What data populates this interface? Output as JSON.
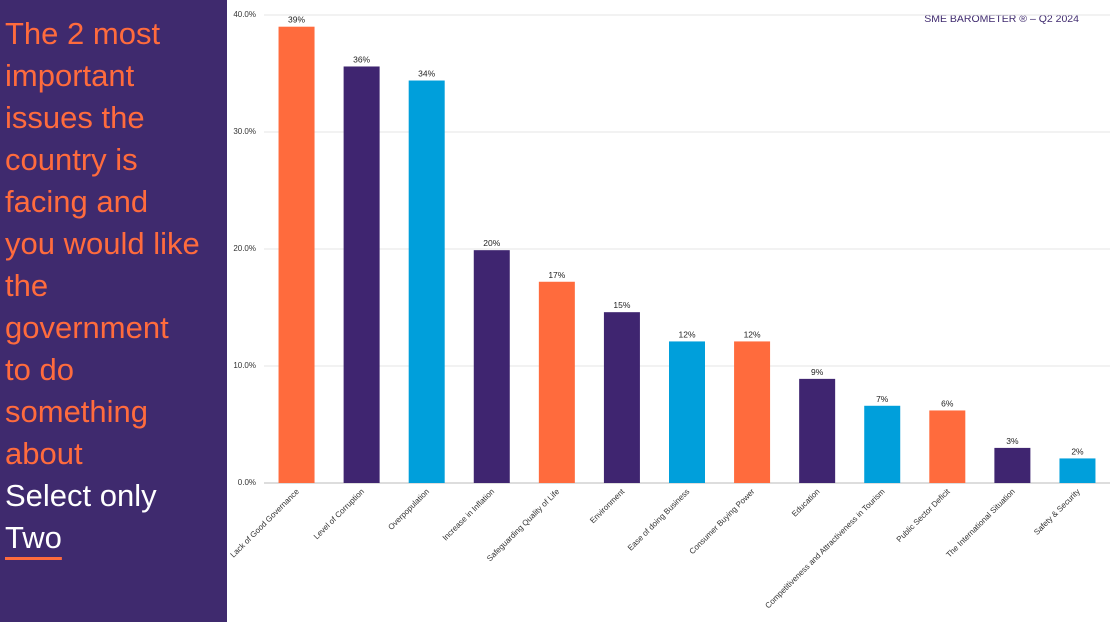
{
  "panel": {
    "question_lines": [
      "The 2 most",
      "important",
      "issues the",
      "country is",
      "facing and",
      "you would like",
      "the",
      "government",
      "to do",
      "something",
      "about"
    ],
    "instruction_lines": [
      "Select only",
      "Two"
    ]
  },
  "chart_data": {
    "type": "bar",
    "brand": "SME BAROMETER ® – Q2 2024",
    "categories": [
      "Lack of Good Governance",
      "Level of Corruption",
      "Overpopulation",
      "Increase in Inflation",
      "Safeguarding Quality of Life",
      "Environment",
      "Ease of doing Business",
      "Consumer Buying Power",
      "Education",
      "Competitiveness and Attractiveness in Tourism",
      "Public Sector Deficit",
      "The International Situation",
      "Safety & Security"
    ],
    "values": [
      39,
      35.6,
      34.4,
      19.9,
      17.2,
      14.6,
      12.1,
      12.1,
      8.9,
      6.6,
      6.2,
      3,
      2.1
    ],
    "value_labels": [
      "39%",
      "36%",
      "34%",
      "20%",
      "17%",
      "15%",
      "12%",
      "12%",
      "9%",
      "7%",
      "6%",
      "3%",
      "2%"
    ],
    "colors": [
      "#ff6b3d",
      "#3f2570",
      "#009fdb",
      "#3f2570",
      "#ff6b3d",
      "#3f2570",
      "#009fdb",
      "#ff6b3d",
      "#3f2570",
      "#009fdb",
      "#ff6b3d",
      "#3f2570",
      "#009fdb"
    ],
    "ylim": [
      0,
      40
    ],
    "yticks": [
      {
        "value": 0,
        "label": "0.0%"
      },
      {
        "value": 10,
        "label": "10.0%"
      },
      {
        "value": 20,
        "label": "20.0%"
      },
      {
        "value": 30,
        "label": "30.0%"
      },
      {
        "value": 40,
        "label": "40.0%"
      }
    ],
    "grid": true
  }
}
